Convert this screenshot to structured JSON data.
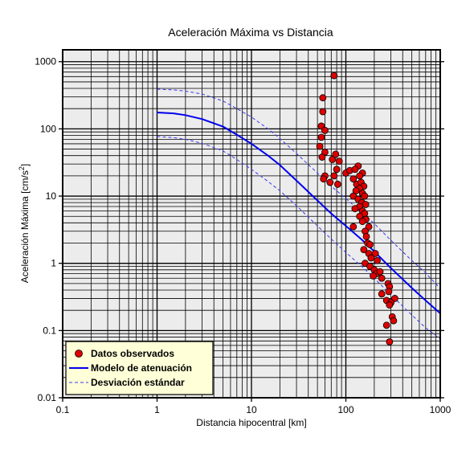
{
  "chart_data": {
    "type": "scatter",
    "title": "Aceleración Máxima vs Distancia",
    "xlabel": "Distancia hipocentral [km]",
    "ylabel": "Aceleración Máxima [cm/s2]",
    "ylabel_main": "Aceleración Máxima [cm/s",
    "ylabel_sup": "2",
    "ylabel_end": "]",
    "xscale": "log",
    "yscale": "log",
    "xlim": [
      0.1,
      1000
    ],
    "ylim": [
      0.01,
      1500
    ],
    "x_ticks": [
      0.1,
      1,
      10,
      100,
      1000
    ],
    "x_tick_labels": [
      "0.1",
      "1",
      "10",
      "100",
      "1000"
    ],
    "y_ticks": [
      0.01,
      0.1,
      1,
      10,
      100,
      1000
    ],
    "y_tick_labels": [
      "0.01",
      "0.1",
      "1",
      "10",
      "100",
      "1000"
    ],
    "grid": true,
    "legend_position": "bottom-left",
    "colors": {
      "background": "#ececec",
      "grid": "#000000",
      "points_fill": "#dd0000",
      "points_edge": "#000000",
      "model_line": "#0000ee",
      "std_lines": "#3a3aee",
      "legend_background": "#ffffd8"
    },
    "series": [
      {
        "name": "Datos observados",
        "kind": "scatter",
        "points": [
          [
            75,
            620
          ],
          [
            57,
            290
          ],
          [
            57,
            180
          ],
          [
            55,
            110
          ],
          [
            60,
            95
          ],
          [
            55,
            75
          ],
          [
            53,
            55
          ],
          [
            60,
            45
          ],
          [
            56,
            38
          ],
          [
            72,
            35
          ],
          [
            85,
            33
          ],
          [
            78,
            42
          ],
          [
            80,
            25
          ],
          [
            75,
            20
          ],
          [
            60,
            20
          ],
          [
            58,
            18
          ],
          [
            68,
            16
          ],
          [
            82,
            15
          ],
          [
            100,
            22
          ],
          [
            110,
            24
          ],
          [
            135,
            28
          ],
          [
            125,
            25
          ],
          [
            150,
            22
          ],
          [
            140,
            20
          ],
          [
            120,
            18
          ],
          [
            130,
            15
          ],
          [
            145,
            16
          ],
          [
            155,
            14
          ],
          [
            140,
            13
          ],
          [
            128,
            12
          ],
          [
            150,
            11
          ],
          [
            158,
            10
          ],
          [
            120,
            10
          ],
          [
            135,
            9
          ],
          [
            148,
            8
          ],
          [
            162,
            7.5
          ],
          [
            140,
            7
          ],
          [
            125,
            6.5
          ],
          [
            150,
            6
          ],
          [
            158,
            5.5
          ],
          [
            140,
            5
          ],
          [
            163,
            4.5
          ],
          [
            150,
            4.2
          ],
          [
            120,
            3.5
          ],
          [
            175,
            3.5
          ],
          [
            160,
            3
          ],
          [
            165,
            2.5
          ],
          [
            170,
            2
          ],
          [
            180,
            1.9
          ],
          [
            155,
            1.6
          ],
          [
            175,
            1.4
          ],
          [
            205,
            1.4
          ],
          [
            185,
            1.2
          ],
          [
            215,
            1.1
          ],
          [
            160,
            1.0
          ],
          [
            180,
            0.9
          ],
          [
            200,
            0.8
          ],
          [
            210,
            0.7
          ],
          [
            230,
            0.75
          ],
          [
            195,
            0.65
          ],
          [
            240,
            0.6
          ],
          [
            280,
            0.5
          ],
          [
            290,
            0.45
          ],
          [
            285,
            0.38
          ],
          [
            240,
            0.35
          ],
          [
            330,
            0.3
          ],
          [
            270,
            0.28
          ],
          [
            300,
            0.26
          ],
          [
            290,
            0.24
          ],
          [
            310,
            0.16
          ],
          [
            320,
            0.14
          ],
          [
            270,
            0.12
          ],
          [
            290,
            0.068
          ]
        ]
      },
      {
        "name": "Modelo de atenuación",
        "kind": "line",
        "points": [
          [
            1,
            175
          ],
          [
            1.5,
            170
          ],
          [
            2,
            160
          ],
          [
            3,
            140
          ],
          [
            5,
            108
          ],
          [
            7,
            82
          ],
          [
            10,
            60
          ],
          [
            15,
            40
          ],
          [
            20,
            29
          ],
          [
            30,
            17
          ],
          [
            50,
            8.6
          ],
          [
            70,
            5.5
          ],
          [
            100,
            3.6
          ],
          [
            150,
            2.2
          ],
          [
            200,
            1.5
          ],
          [
            300,
            0.85
          ],
          [
            500,
            0.43
          ],
          [
            700,
            0.28
          ],
          [
            1000,
            0.18
          ]
        ]
      },
      {
        "name": "Desviación estándar",
        "kind": "dashed-line",
        "points": [
          [
            1,
            390
          ],
          [
            1.5,
            380
          ],
          [
            2,
            365
          ],
          [
            3,
            330
          ],
          [
            5,
            260
          ],
          [
            7,
            200
          ],
          [
            10,
            150
          ],
          [
            15,
            100
          ],
          [
            20,
            72
          ],
          [
            30,
            43
          ],
          [
            50,
            22
          ],
          [
            70,
            14
          ],
          [
            100,
            9.2
          ],
          [
            150,
            5.6
          ],
          [
            200,
            3.9
          ],
          [
            300,
            2.2
          ],
          [
            500,
            1.1
          ],
          [
            700,
            0.72
          ],
          [
            1000,
            0.42
          ]
        ]
      },
      {
        "name": "",
        "kind": "dashed-line",
        "points": [
          [
            1,
            77
          ],
          [
            1.5,
            74
          ],
          [
            2,
            70
          ],
          [
            3,
            61
          ],
          [
            5,
            47
          ],
          [
            7,
            35
          ],
          [
            10,
            25
          ],
          [
            15,
            16.5
          ],
          [
            20,
            12
          ],
          [
            30,
            7.2
          ],
          [
            50,
            3.6
          ],
          [
            70,
            2.3
          ],
          [
            100,
            1.45
          ],
          [
            150,
            0.88
          ],
          [
            200,
            0.6
          ],
          [
            300,
            0.34
          ],
          [
            500,
            0.17
          ],
          [
            700,
            0.11
          ],
          [
            1000,
            0.075
          ]
        ]
      }
    ]
  }
}
